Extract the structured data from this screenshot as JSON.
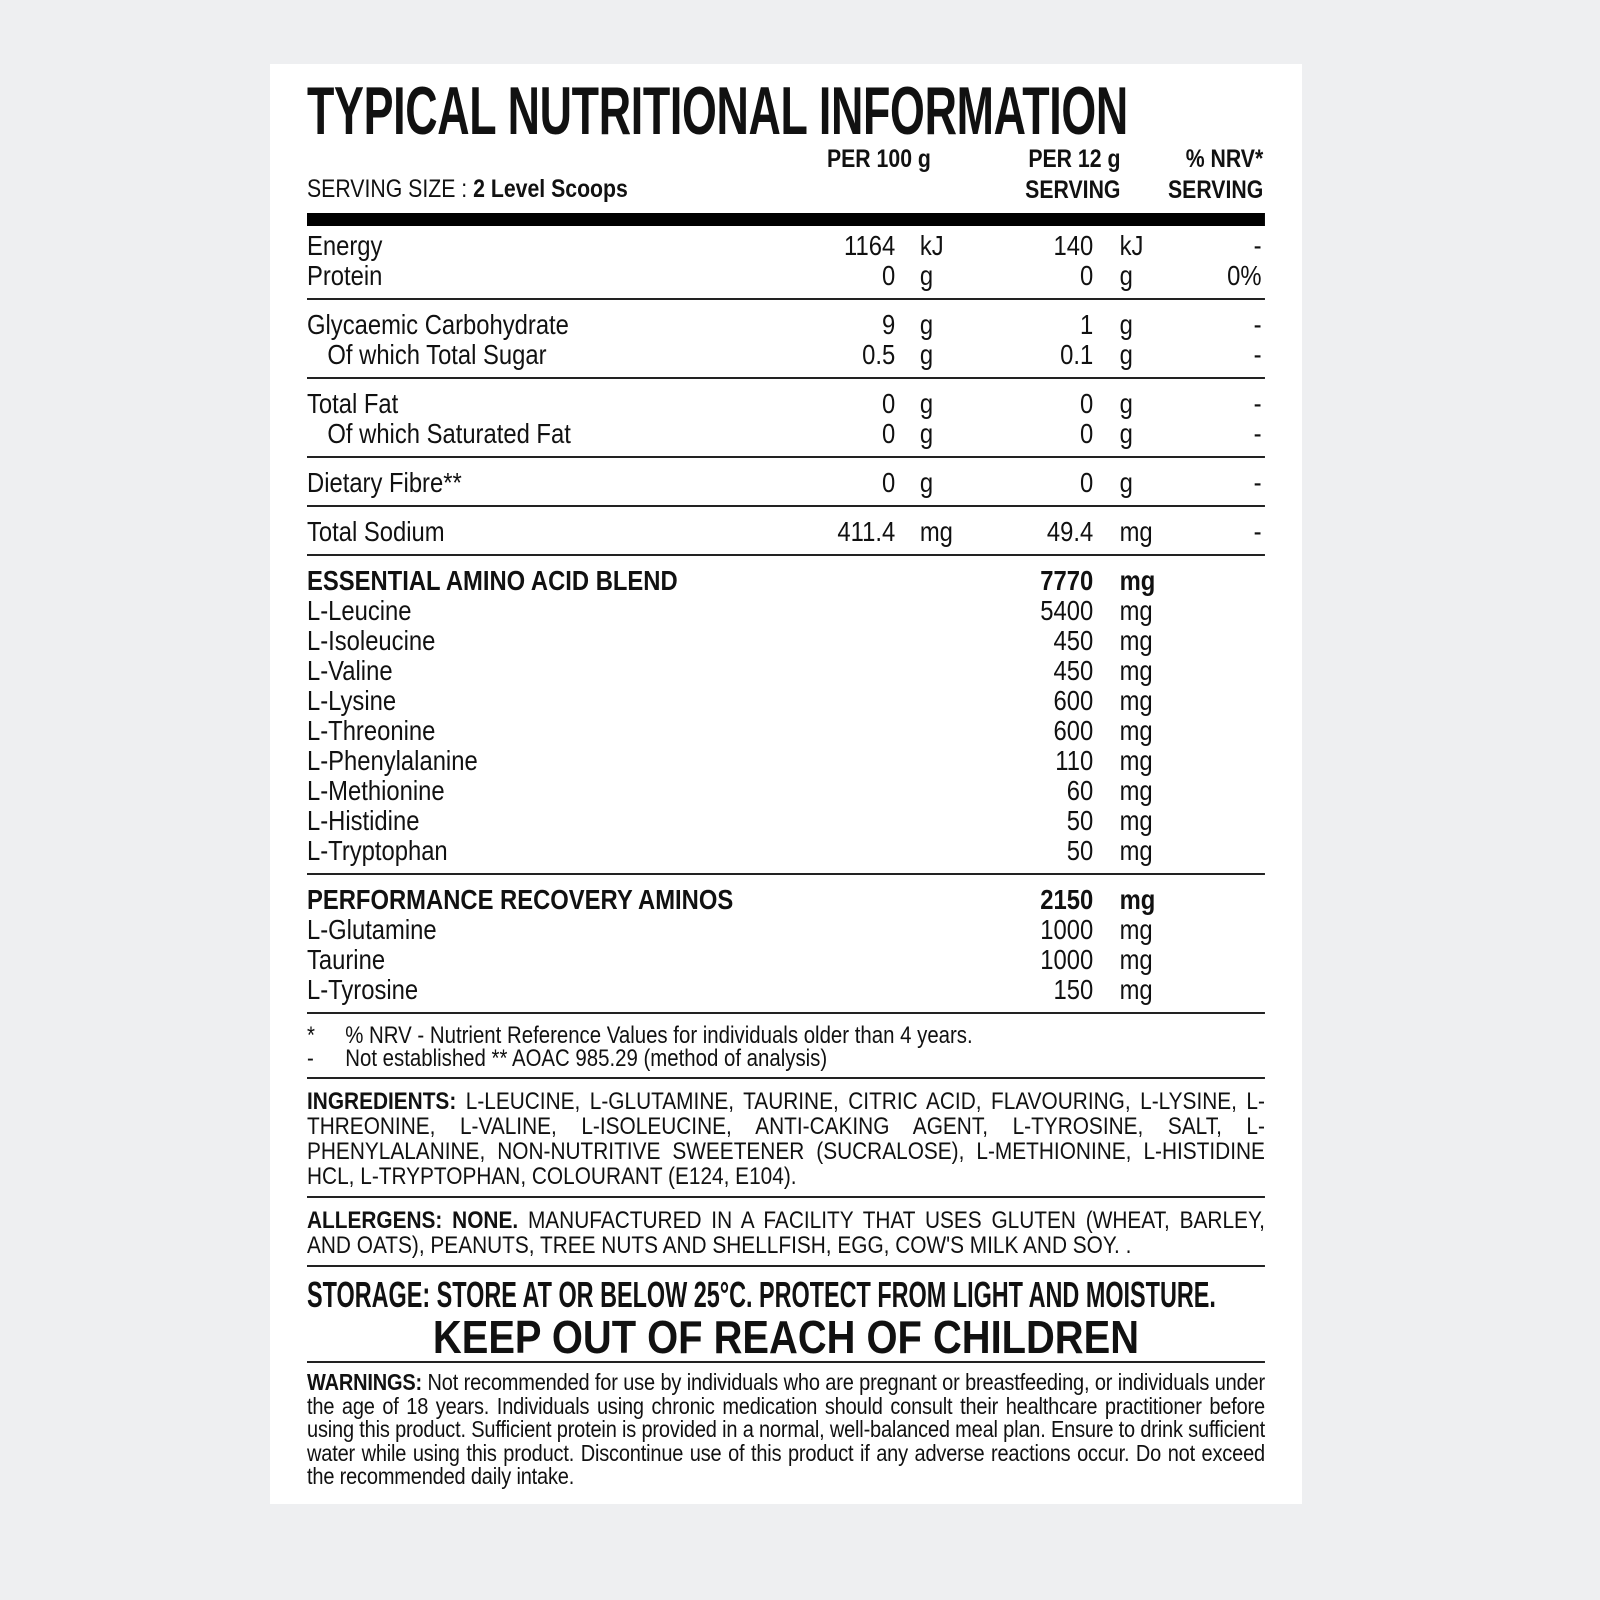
{
  "title": "TYPICAL NUTRITIONAL INFORMATION",
  "headers": {
    "per100": "PER 100 g",
    "per_serving_1": "PER 12 g",
    "per_serving_2": "SERVING",
    "nrv_1": "% NRV*",
    "nrv_2": "SERVING"
  },
  "serving_size": {
    "label": "SERVING SIZE : ",
    "value": "2 Level Scoops"
  },
  "groups": [
    [
      {
        "label": "Energy",
        "v100": "1164",
        "u100": "kJ",
        "vs": "140",
        "us": "kJ",
        "nrv": "-"
      },
      {
        "label": "Protein",
        "v100": "0",
        "u100": "g",
        "vs": "0",
        "us": "g",
        "nrv": "0%"
      }
    ],
    [
      {
        "label": "Glycaemic Carbohydrate",
        "v100": "9",
        "u100": "g",
        "vs": "1",
        "us": "g",
        "nrv": "-"
      },
      {
        "label": "Of which Total Sugar",
        "indent": true,
        "v100": "0.5",
        "u100": "g",
        "vs": "0.1",
        "us": "g",
        "nrv": "-"
      }
    ],
    [
      {
        "label": "Total Fat",
        "v100": "0",
        "u100": "g",
        "vs": "0",
        "us": "g",
        "nrv": "-"
      },
      {
        "label": "Of which Saturated Fat",
        "indent": true,
        "v100": "0",
        "u100": "g",
        "vs": "0",
        "us": "g",
        "nrv": "-"
      }
    ],
    [
      {
        "label": "Dietary Fibre**",
        "v100": "0",
        "u100": "g",
        "vs": "0",
        "us": "g",
        "nrv": "-"
      }
    ],
    [
      {
        "label": "Total Sodium",
        "v100": "411.4",
        "u100": "mg",
        "vs": "49.4",
        "us": "mg",
        "nrv": "-"
      }
    ],
    [
      {
        "label": "ESSENTIAL AMINO ACID BLEND",
        "bold": true,
        "vs": "7770",
        "us": "mg"
      },
      {
        "label": "L-Leucine",
        "vs": "5400",
        "us": "mg"
      },
      {
        "label": "L-Isoleucine",
        "vs": "450",
        "us": "mg"
      },
      {
        "label": "L-Valine",
        "vs": "450",
        "us": "mg"
      },
      {
        "label": "L-Lysine",
        "vs": "600",
        "us": "mg"
      },
      {
        "label": "L-Threonine",
        "vs": "600",
        "us": "mg"
      },
      {
        "label": "L-Phenylalanine",
        "vs": "110",
        "us": "mg"
      },
      {
        "label": "L-Methionine",
        "vs": "60",
        "us": "mg"
      },
      {
        "label": "L-Histidine",
        "vs": "50",
        "us": "mg"
      },
      {
        "label": "L-Tryptophan",
        "vs": "50",
        "us": "mg"
      }
    ],
    [
      {
        "label": "PERFORMANCE RECOVERY AMINOS",
        "bold": true,
        "vs": "2150",
        "us": "mg"
      },
      {
        "label": "L-Glutamine",
        "vs": "1000",
        "us": "mg"
      },
      {
        "label": "Taurine",
        "vs": "1000",
        "us": "mg"
      },
      {
        "label": "L-Tyrosine",
        "vs": "150",
        "us": "mg"
      }
    ]
  ],
  "footnotes": [
    {
      "mark": "*",
      "text": "% NRV - Nutrient Reference Values for individuals older than 4 years."
    },
    {
      "mark": "-",
      "text": "Not established ** AOAC 985.29 (method of analysis)"
    }
  ],
  "ingredients": {
    "label": "INGREDIENTS:",
    "text": " L-LEUCINE, L-GLUTAMINE, TAURINE, CITRIC ACID, FLAVOURING, L-LYSINE, L-THREONINE, L-VALINE, L-ISOLEUCINE, ANTI-CAKING AGENT, L-TYROSINE, SALT, L-PHENYLALANINE, NON-NUTRITIVE SWEETENER (SUCRALOSE), L-METHIONINE, L-HISTIDINE HCL, L-TRYPTOPHAN, COLOURANT (E124, E104)."
  },
  "allergens": {
    "label": "ALLERGENS: NONE.",
    "text": " MANUFACTURED IN A FACILITY THAT USES GLUTEN (WHEAT, BARLEY, AND OATS), PEANUTS, TREE NUTS AND SHELLFISH, EGG, COW'S MILK AND SOY. ."
  },
  "storage": "STORAGE: STORE AT OR BELOW 25°C. PROTECT FROM LIGHT AND MOISTURE.",
  "keep_out": "KEEP OUT OF REACH OF CHILDREN",
  "warnings": {
    "label": "WARNINGS:",
    "text": " Not recommended for use by individuals who are pregnant or breastfeeding, or individuals under the age of 18 years. Individuals using chronic medication should consult their healthcare practitioner before using this product. Sufficient protein is provided in a normal, well-balanced meal plan. Ensure to drink sufficient water while using this product. Discontinue use of this product if any adverse reactions occur. Do not exceed the recommended daily intake."
  },
  "colors": {
    "background": "#eeeff1",
    "card": "#ffffff",
    "text": "#111111"
  }
}
